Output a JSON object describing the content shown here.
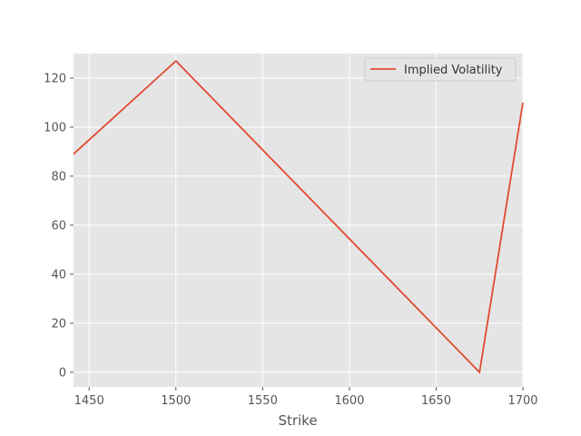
{
  "chart_data": {
    "type": "line",
    "title": "",
    "xlabel": "Strike",
    "ylabel": "",
    "xlim": [
      1441,
      1700
    ],
    "ylim": [
      -6,
      130
    ],
    "xticks": [
      1450,
      1500,
      1550,
      1600,
      1650,
      1700
    ],
    "yticks": [
      0,
      20,
      40,
      60,
      80,
      100,
      120
    ],
    "grid": true,
    "legend_position": "top-right",
    "series": [
      {
        "name": "Implied Volatility",
        "color": "#E24A33",
        "x": [
          1441,
          1500,
          1675,
          1700
        ],
        "y": [
          89,
          127,
          0,
          110
        ]
      }
    ]
  }
}
